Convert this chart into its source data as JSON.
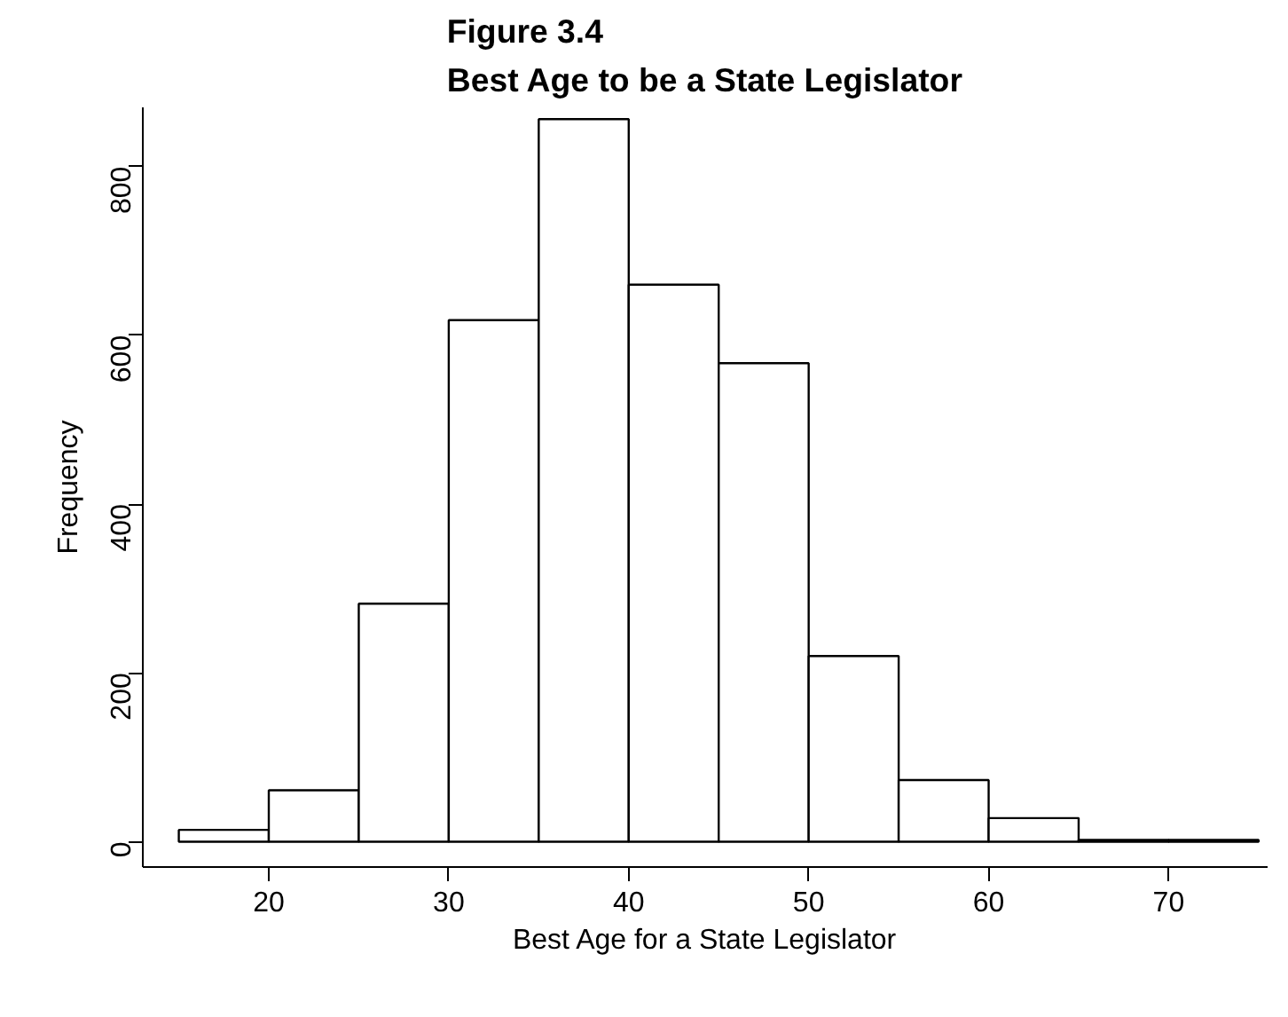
{
  "chart_data": {
    "type": "histogram",
    "title": "Figure 3.4\nBest Age to be a State Legislator",
    "xlabel": "Best Age for a State Legislator",
    "ylabel": "Frequency",
    "bins": [
      15,
      20,
      25,
      30,
      35,
      40,
      45,
      50,
      55,
      60,
      65,
      70,
      75
    ],
    "values": [
      14,
      61,
      282,
      618,
      856,
      660,
      567,
      220,
      73,
      28,
      2,
      2
    ],
    "color": "#ffffff",
    "xlim": [
      13,
      75.5
    ],
    "ylim": [
      -30,
      870
    ],
    "xticks": [
      20,
      30,
      40,
      50,
      60,
      70
    ],
    "yticks": [
      0,
      200,
      400,
      600,
      800
    ],
    "grid": false
  }
}
